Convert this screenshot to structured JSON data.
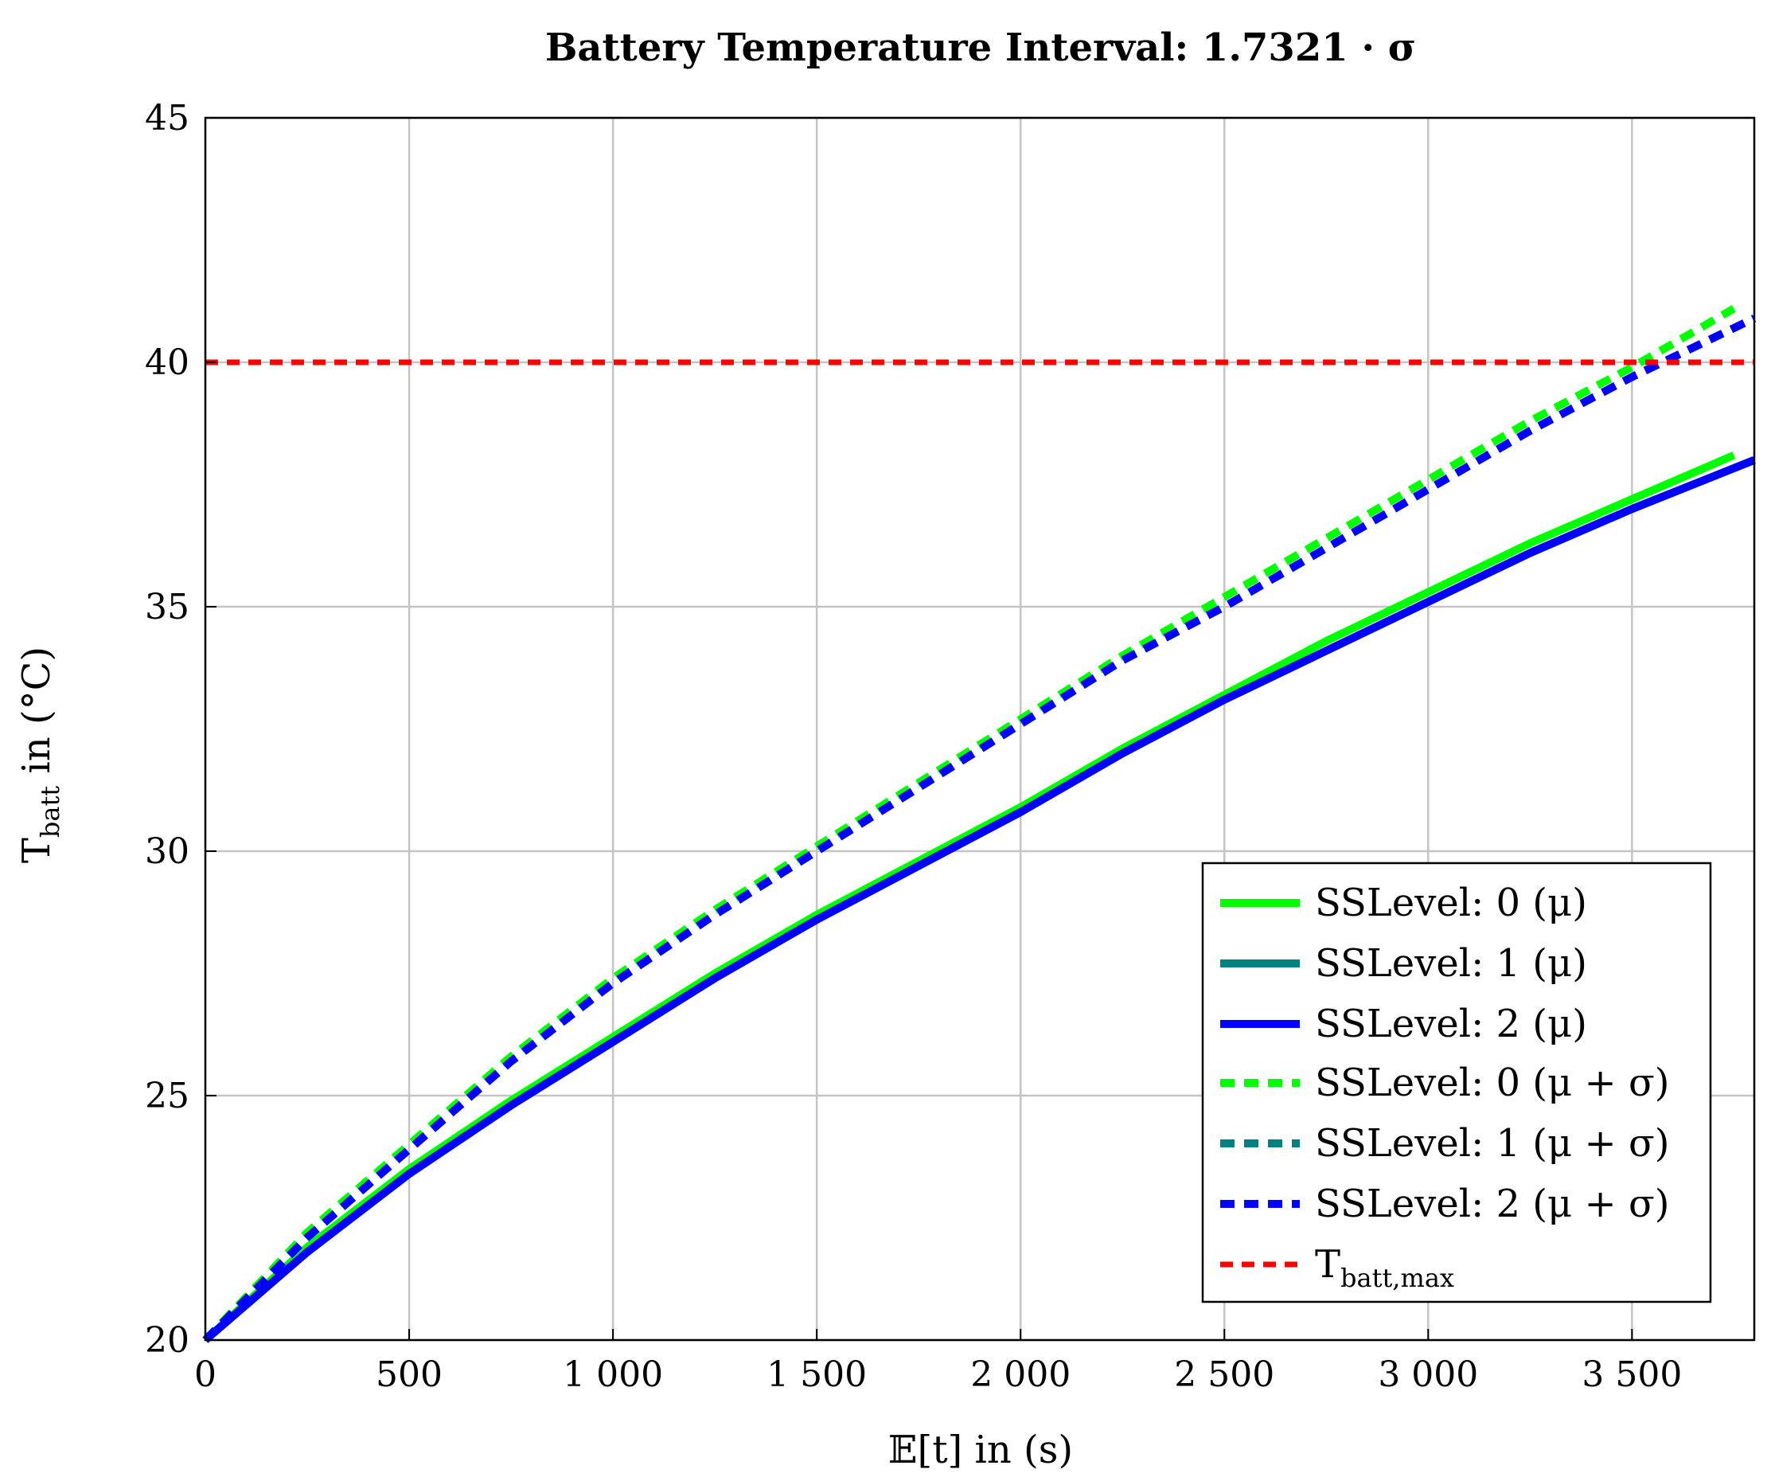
{
  "chart_data": {
    "type": "line",
    "title": "Battery Temperature Interval: 1.7321 · σ",
    "xlabel": "𝔼[t] in (s)",
    "ylabel_main": "T",
    "ylabel_sub": "batt",
    "ylabel_rest": " in (°C)",
    "xlim": [
      0,
      3800
    ],
    "ylim": [
      20,
      45
    ],
    "grid": true,
    "xticks": [
      0,
      500,
      1000,
      1500,
      2000,
      2500,
      3000,
      3500
    ],
    "xtick_labels": [
      "0",
      "500",
      "1 000",
      "1 500",
      "2 000",
      "2 500",
      "3 000",
      "3 500"
    ],
    "yticks": [
      20,
      25,
      30,
      35,
      40,
      45
    ],
    "ytick_labels": [
      "20",
      "25",
      "30",
      "35",
      "40",
      "45"
    ],
    "legend_position": "bottom-right",
    "series": [
      {
        "name": "SSLevel: 0 (μ)",
        "color": "#00ff00",
        "dashed": false,
        "x": [
          0,
          250,
          500,
          750,
          1000,
          1250,
          1500,
          1750,
          2000,
          2250,
          2500,
          2750,
          3000,
          3250,
          3500,
          3750
        ],
        "y": [
          20.0,
          21.9,
          23.5,
          24.9,
          26.2,
          27.5,
          28.7,
          29.8,
          30.9,
          32.1,
          33.2,
          34.3,
          35.3,
          36.3,
          37.2,
          38.1
        ]
      },
      {
        "name": "SSLevel: 1 (μ)",
        "color": "#008080",
        "dashed": false,
        "x": [
          0,
          250,
          500,
          750,
          1000,
          1250,
          1500,
          1750,
          2000,
          2250,
          2500,
          2750,
          3000,
          3250,
          3500,
          3800
        ],
        "y": [
          20.0,
          21.8,
          23.4,
          24.8,
          26.1,
          27.4,
          28.6,
          29.7,
          30.8,
          32.0,
          33.1,
          34.1,
          35.1,
          36.1,
          37.0,
          38.0
        ]
      },
      {
        "name": "SSLevel: 2 (μ)",
        "color": "#0000ff",
        "dashed": false,
        "x": [
          0,
          250,
          500,
          750,
          1000,
          1250,
          1500,
          1750,
          2000,
          2250,
          2500,
          2750,
          3000,
          3250,
          3500,
          3800
        ],
        "y": [
          20.0,
          21.8,
          23.4,
          24.8,
          26.1,
          27.4,
          28.6,
          29.7,
          30.8,
          32.0,
          33.1,
          34.1,
          35.1,
          36.1,
          37.0,
          38.0
        ]
      },
      {
        "name": "SSLevel: 0 (μ + σ)",
        "color": "#00ff00",
        "dashed": true,
        "x": [
          0,
          250,
          500,
          750,
          1000,
          1250,
          1500,
          1750,
          2000,
          2250,
          2500,
          2750,
          3000,
          3250,
          3500,
          3750
        ],
        "y": [
          20.0,
          22.2,
          24.0,
          25.8,
          27.4,
          28.8,
          30.1,
          31.4,
          32.7,
          34.0,
          35.2,
          36.4,
          37.6,
          38.8,
          39.9,
          41.1
        ]
      },
      {
        "name": "SSLevel: 1 (μ + σ)",
        "color": "#008080",
        "dashed": true,
        "x": [
          0,
          250,
          500,
          750,
          1000,
          1250,
          1500,
          1750,
          2000,
          2250,
          2500,
          2750,
          3000,
          3250,
          3500,
          3800
        ],
        "y": [
          20.0,
          22.1,
          23.9,
          25.7,
          27.3,
          28.7,
          30.0,
          31.3,
          32.6,
          33.9,
          35.0,
          36.2,
          37.4,
          38.6,
          39.7,
          40.9
        ]
      },
      {
        "name": "SSLevel: 2 (μ + σ)",
        "color": "#0000ff",
        "dashed": true,
        "x": [
          0,
          250,
          500,
          750,
          1000,
          1250,
          1500,
          1750,
          2000,
          2250,
          2500,
          2750,
          3000,
          3250,
          3500,
          3800
        ],
        "y": [
          20.0,
          22.1,
          23.9,
          25.7,
          27.3,
          28.7,
          30.0,
          31.3,
          32.6,
          33.9,
          35.0,
          36.2,
          37.4,
          38.6,
          39.7,
          40.9
        ]
      },
      {
        "name_main": "T",
        "name_sub": "batt,max",
        "color": "#ff0000",
        "dashed": true,
        "x": [
          0,
          3800
        ],
        "y": [
          40,
          40
        ]
      }
    ]
  }
}
